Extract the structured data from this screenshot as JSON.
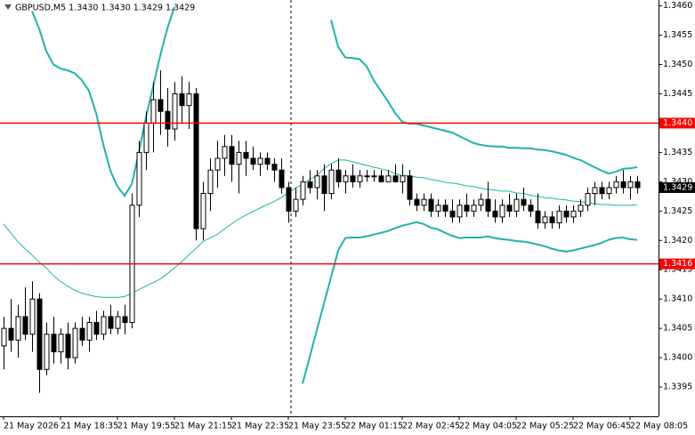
{
  "chart_data": {
    "type": "candlestick",
    "title": "GBPUSD,M5  1.3430 1.3430 1.3429 1.3429",
    "ylim": [
      1.339,
      1.3461
    ],
    "yticks": [
      1.3395,
      {
        "value": 1.34,
        "label": "1.3400"
      },
      1.3405,
      {
        "value": 1.341,
        "label": "1.3410"
      },
      1.3415,
      {
        "value": 1.342,
        "label": "1.3420"
      },
      1.3425,
      {
        "value": 1.343,
        "label": "1.3430"
      },
      1.3435,
      {
        "value": 1.344,
        "label": "1.3440"
      },
      1.3445,
      {
        "value": 1.345,
        "label": "1.3450"
      },
      1.3455,
      {
        "value": 1.346,
        "label": "1.3460"
      }
    ],
    "x_labels": [
      {
        "index": 0,
        "label": "21 May 2026"
      },
      {
        "index": 8,
        "label": "21 May 18:35"
      },
      {
        "index": 16,
        "label": "21 May 19:55"
      },
      {
        "index": 24,
        "label": "21 May 21:15"
      },
      {
        "index": 32,
        "label": "21 May 22:35"
      },
      {
        "index": 40,
        "label": "21 May 23:55"
      },
      {
        "index": 48,
        "label": "22 May 01:15"
      },
      {
        "index": 56,
        "label": "22 May 02:45"
      },
      {
        "index": 64,
        "label": "22 May 04:05"
      },
      {
        "index": 72,
        "label": "22 May 05:25"
      },
      {
        "index": 80,
        "label": "22 May 06:45"
      },
      {
        "index": 88,
        "label": "22 May 08:05"
      }
    ],
    "candles": [
      [
        1.3402,
        1.3407,
        1.3398,
        1.3405
      ],
      [
        1.3405,
        1.341,
        1.3401,
        1.3403
      ],
      [
        1.3403,
        1.3409,
        1.34,
        1.3407
      ],
      [
        1.3407,
        1.3412,
        1.3403,
        1.3404
      ],
      [
        1.3404,
        1.3413,
        1.3401,
        1.341
      ],
      [
        1.341,
        1.3411,
        1.3394,
        1.3398
      ],
      [
        1.3398,
        1.3406,
        1.3397,
        1.3404
      ],
      [
        1.3404,
        1.3407,
        1.3399,
        1.3401
      ],
      [
        1.3401,
        1.3405,
        1.3399,
        1.3404
      ],
      [
        1.3404,
        1.3406,
        1.3398,
        1.34
      ],
      [
        1.34,
        1.3406,
        1.3399,
        1.3405
      ],
      [
        1.3405,
        1.3407,
        1.3402,
        1.3403
      ],
      [
        1.3403,
        1.3407,
        1.3401,
        1.3406
      ],
      [
        1.3406,
        1.3408,
        1.3403,
        1.3404
      ],
      [
        1.3404,
        1.3408,
        1.3403,
        1.3407
      ],
      [
        1.3407,
        1.3409,
        1.3404,
        1.3405
      ],
      [
        1.3405,
        1.3408,
        1.3404,
        1.3407
      ],
      [
        1.3407,
        1.3409,
        1.3404,
        1.3406
      ],
      [
        1.3406,
        1.3428,
        1.3405,
        1.3426
      ],
      [
        1.3426,
        1.3437,
        1.3424,
        1.3435
      ],
      [
        1.3435,
        1.3442,
        1.3432,
        1.344
      ],
      [
        1.344,
        1.3447,
        1.3435,
        1.3444
      ],
      [
        1.3444,
        1.3449,
        1.3438,
        1.3442
      ],
      [
        1.3442,
        1.3446,
        1.3436,
        1.3439
      ],
      [
        1.3439,
        1.3447,
        1.3437,
        1.3445
      ],
      [
        1.3445,
        1.3448,
        1.344,
        1.3443
      ],
      [
        1.3443,
        1.3447,
        1.3439,
        1.3445
      ],
      [
        1.3445,
        1.3446,
        1.342,
        1.3422
      ],
      [
        1.3422,
        1.343,
        1.342,
        1.3428
      ],
      [
        1.3428,
        1.3434,
        1.3425,
        1.3432
      ],
      [
        1.3432,
        1.3437,
        1.3429,
        1.3434
      ],
      [
        1.3434,
        1.3438,
        1.3431,
        1.3436
      ],
      [
        1.3436,
        1.3438,
        1.343,
        1.3433
      ],
      [
        1.3433,
        1.3437,
        1.3428,
        1.3435
      ],
      [
        1.3435,
        1.3437,
        1.3431,
        1.3434
      ],
      [
        1.3434,
        1.3436,
        1.3432,
        1.3433
      ],
      [
        1.3433,
        1.3435,
        1.3431,
        1.3434
      ],
      [
        1.3434,
        1.3435,
        1.3432,
        1.3433
      ],
      [
        1.3433,
        1.3434,
        1.343,
        1.3432
      ],
      [
        1.3432,
        1.3434,
        1.3428,
        1.3429
      ],
      [
        1.3429,
        1.343,
        1.3423,
        1.3425
      ],
      [
        1.3425,
        1.3429,
        1.3424,
        1.3427
      ],
      [
        1.3427,
        1.3431,
        1.3426,
        1.343
      ],
      [
        1.343,
        1.3432,
        1.3428,
        1.3429
      ],
      [
        1.3429,
        1.3432,
        1.3427,
        1.3431
      ],
      [
        1.3431,
        1.3433,
        1.3425,
        1.3428
      ],
      [
        1.3428,
        1.3433,
        1.3427,
        1.3432
      ],
      [
        1.3432,
        1.3434,
        1.3429,
        1.343
      ],
      [
        1.343,
        1.3432,
        1.3428,
        1.3431
      ],
      [
        1.3431,
        1.3433,
        1.3429,
        1.343
      ],
      [
        1.343,
        1.3432,
        1.3429,
        1.3431
      ],
      [
        1.3431,
        1.3432,
        1.343,
        1.3431
      ],
      [
        1.3431,
        1.3432,
        1.343,
        1.3431
      ],
      [
        1.3431,
        1.3432,
        1.343,
        1.343
      ],
      [
        1.343,
        1.3432,
        1.343,
        1.3431
      ],
      [
        1.3431,
        1.3433,
        1.343,
        1.343
      ],
      [
        1.343,
        1.3433,
        1.3428,
        1.3431
      ],
      [
        1.3431,
        1.3432,
        1.3426,
        1.3427
      ],
      [
        1.3427,
        1.3428,
        1.3425,
        1.3426
      ],
      [
        1.3426,
        1.3428,
        1.3425,
        1.3427
      ],
      [
        1.3427,
        1.3428,
        1.3424,
        1.3425
      ],
      [
        1.3425,
        1.3427,
        1.3424,
        1.3426
      ],
      [
        1.3426,
        1.3427,
        1.3424,
        1.3425
      ],
      [
        1.3425,
        1.3427,
        1.3423,
        1.3424
      ],
      [
        1.3424,
        1.3427,
        1.3423,
        1.3426
      ],
      [
        1.3426,
        1.3428,
        1.3424,
        1.3425
      ],
      [
        1.3425,
        1.3427,
        1.3424,
        1.3426
      ],
      [
        1.3426,
        1.3428,
        1.3425,
        1.3427
      ],
      [
        1.3427,
        1.343,
        1.3424,
        1.3425
      ],
      [
        1.3425,
        1.3427,
        1.3423,
        1.3424
      ],
      [
        1.3424,
        1.3427,
        1.3423,
        1.3426
      ],
      [
        1.3426,
        1.3428,
        1.3424,
        1.3425
      ],
      [
        1.3425,
        1.3428,
        1.3424,
        1.3427
      ],
      [
        1.3427,
        1.3429,
        1.3425,
        1.3426
      ],
      [
        1.3426,
        1.3427,
        1.3424,
        1.3425
      ],
      [
        1.3425,
        1.3428,
        1.3422,
        1.3423
      ],
      [
        1.3423,
        1.3425,
        1.3422,
        1.3424
      ],
      [
        1.3424,
        1.3425,
        1.3422,
        1.3423
      ],
      [
        1.3423,
        1.3426,
        1.3422,
        1.3425
      ],
      [
        1.3425,
        1.3426,
        1.3423,
        1.3424
      ],
      [
        1.3424,
        1.3426,
        1.3423,
        1.3425
      ],
      [
        1.3425,
        1.3427,
        1.3424,
        1.3426
      ],
      [
        1.3426,
        1.3429,
        1.3425,
        1.3428
      ],
      [
        1.3428,
        1.343,
        1.3426,
        1.3429
      ],
      [
        1.3429,
        1.343,
        1.3427,
        1.3428
      ],
      [
        1.3428,
        1.343,
        1.3427,
        1.3429
      ],
      [
        1.3429,
        1.3431,
        1.3428,
        1.343
      ],
      [
        1.343,
        1.3432,
        1.3428,
        1.3429
      ],
      [
        1.3429,
        1.3431,
        1.3427,
        1.343
      ],
      [
        1.343,
        1.3431,
        1.3428,
        1.3429
      ]
    ],
    "bollinger": {
      "color": "#20b2aa",
      "upper": [
        null,
        null,
        null,
        null,
        1.34591,
        1.34561,
        1.34523,
        1.345,
        1.34493,
        1.3449,
        1.34485,
        1.34473,
        1.34455,
        1.34417,
        1.34364,
        1.34319,
        1.34292,
        1.34276,
        1.34296,
        1.34349,
        1.3441,
        1.34462,
        1.34515,
        1.34561,
        1.34598,
        null,
        null,
        null,
        null,
        null,
        null,
        null,
        null,
        null,
        null,
        null,
        null,
        null,
        null,
        null,
        null,
        null,
        null,
        null,
        null,
        null,
        1.34576,
        1.3453,
        1.34512,
        1.34511,
        1.34509,
        1.34497,
        1.34473,
        1.34455,
        1.34437,
        1.34417,
        1.34402,
        1.34399,
        1.34399,
        1.34396,
        1.34393,
        1.3439,
        1.34387,
        1.34384,
        1.34378,
        1.34372,
        1.34366,
        1.34363,
        1.34361,
        1.3436,
        1.3436,
        1.34358,
        1.34358,
        1.34357,
        1.34357,
        1.34355,
        1.34354,
        1.34352,
        1.34349,
        1.34346,
        1.34341,
        1.34337,
        1.34331,
        1.34325,
        1.34319,
        1.34314,
        1.34317,
        1.34322,
        1.34323,
        1.34325
      ],
      "middle": [
        1.34228,
        1.34213,
        1.34198,
        1.34186,
        1.34175,
        1.34163,
        1.34153,
        1.3414,
        1.3413,
        1.34122,
        1.34115,
        1.3411,
        1.34107,
        1.34104,
        1.34103,
        1.34103,
        1.34103,
        1.34104,
        1.3411,
        1.34116,
        1.34122,
        1.34128,
        1.34134,
        1.34143,
        1.34153,
        1.34163,
        1.34175,
        1.34186,
        1.34198,
        1.34204,
        1.3421,
        1.34219,
        1.34228,
        1.34236,
        1.34243,
        1.34249,
        1.34255,
        1.34261,
        1.34266,
        1.34273,
        1.34281,
        1.34289,
        1.34296,
        1.34304,
        1.34311,
        1.34322,
        1.34331,
        1.34337,
        1.34337,
        1.34334,
        1.34331,
        1.34328,
        1.34325,
        1.34322,
        1.34319,
        1.34314,
        1.34311,
        1.3431,
        1.34308,
        1.34307,
        1.34304,
        1.34302,
        1.34299,
        1.34298,
        1.34296,
        1.34293,
        1.34292,
        1.34289,
        1.34287,
        1.34286,
        1.34284,
        1.34284,
        1.34281,
        1.3428,
        1.34277,
        1.34275,
        1.34273,
        1.34272,
        1.3427,
        1.34269,
        1.34267,
        1.34266,
        1.34264,
        1.34263,
        1.34261,
        1.34261,
        1.3426,
        1.3426,
        1.3426,
        1.34261
      ],
      "lower": [
        null,
        null,
        null,
        null,
        null,
        null,
        null,
        null,
        null,
        null,
        null,
        null,
        null,
        null,
        null,
        null,
        null,
        null,
        null,
        null,
        null,
        null,
        null,
        null,
        null,
        null,
        null,
        null,
        null,
        null,
        null,
        null,
        null,
        null,
        null,
        null,
        null,
        null,
        null,
        null,
        null,
        null,
        1.33956,
        1.34001,
        1.34047,
        1.34092,
        1.34137,
        1.34183,
        1.34204,
        1.34205,
        1.34205,
        1.34207,
        1.3421,
        1.34213,
        1.34216,
        1.34221,
        1.34225,
        1.34228,
        1.34231,
        1.34228,
        1.34222,
        1.34219,
        1.34213,
        1.34208,
        1.34204,
        1.34205,
        1.34205,
        1.34205,
        1.34207,
        1.34204,
        1.34202,
        1.34201,
        1.34199,
        1.34198,
        1.34196,
        1.34193,
        1.3419,
        1.34186,
        1.34183,
        1.34181,
        1.34183,
        1.34186,
        1.34189,
        1.34192,
        1.34196,
        1.34201,
        1.34204,
        1.34205,
        1.34202,
        1.34201
      ]
    },
    "levels": [
      {
        "value": 1.344,
        "label": "1.3440"
      },
      {
        "value": 1.3416,
        "label": "1.3416"
      }
    ],
    "level_color": "#ff0000",
    "last_price": {
      "value": 1.3429,
      "label": "1.3429"
    }
  }
}
